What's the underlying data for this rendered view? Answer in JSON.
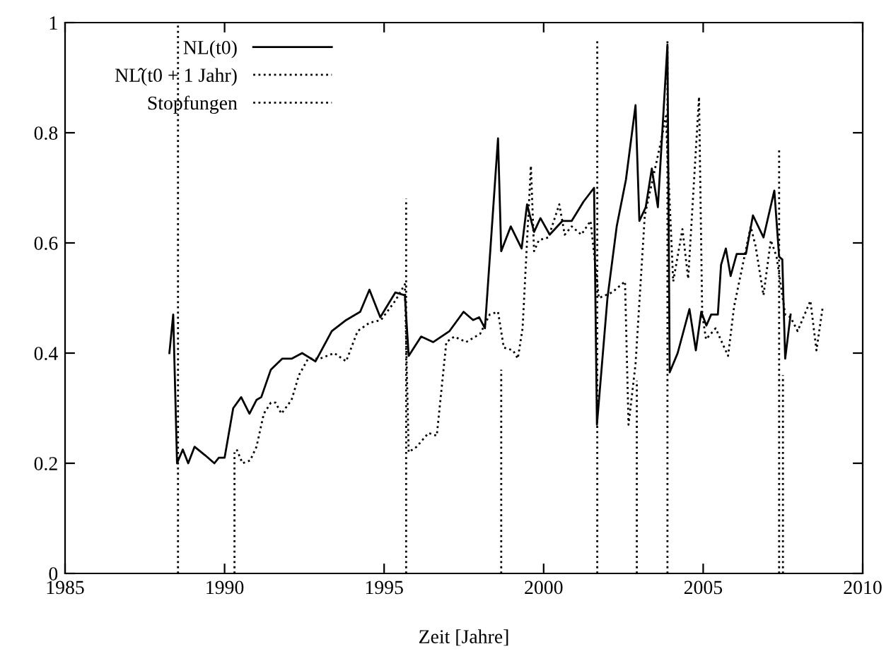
{
  "chart_data": {
    "type": "line",
    "xlabel": "Zeit [Jahre]",
    "xlim": [
      1985,
      2010
    ],
    "xticks": [
      1985,
      1990,
      1995,
      2000,
      2005,
      2010
    ],
    "ylim": [
      0,
      1
    ],
    "yticks": [
      0,
      {
        "value": 0.2,
        "label": "0.2"
      },
      {
        "value": 0.4,
        "label": "0.4"
      },
      {
        "value": 0.6,
        "label": "0.6"
      },
      {
        "value": 0.8,
        "label": "0.8"
      },
      1
    ],
    "grid": false,
    "legend": "top left",
    "marker": "none",
    "series": [
      {
        "name": "NL(t0)",
        "color": "#000000",
        "line_style": "solid",
        "x": [
          1988.27,
          1988.39,
          1988.51,
          1988.69,
          1988.86,
          1989.06,
          1989.38,
          1989.68,
          1989.82,
          1990.0,
          1990.27,
          1990.52,
          1990.78,
          1991.0,
          1991.15,
          1991.45,
          1991.81,
          1992.11,
          1992.43,
          1992.85,
          1993.36,
          1993.81,
          1994.25,
          1994.54,
          1994.88,
          1995.35,
          1995.65,
          1995.77,
          1996.16,
          1996.54,
          1997.05,
          1997.49,
          1997.79,
          1997.98,
          1998.16,
          1998.57,
          1998.67,
          1998.97,
          1999.31,
          1999.48,
          1999.7,
          1999.9,
          2000.19,
          2000.59,
          2000.88,
          2001.25,
          2001.58,
          2001.67,
          2002.0,
          2002.29,
          2002.58,
          2002.88,
          2003.0,
          2003.2,
          2003.39,
          2003.58,
          2003.88,
          2003.95,
          2004.2,
          2004.57,
          2004.77,
          2004.94,
          2005.1,
          2005.25,
          2005.46,
          2005.56,
          2005.71,
          2005.86,
          2006.05,
          2006.34,
          2006.56,
          2006.89,
          2007.23,
          2007.38,
          2007.48,
          2007.57,
          2007.74
        ],
        "values": [
          0.4,
          0.47,
          0.2,
          0.225,
          0.2,
          0.23,
          0.215,
          0.2,
          0.21,
          0.21,
          0.3,
          0.32,
          0.29,
          0.315,
          0.32,
          0.37,
          0.39,
          0.39,
          0.4,
          0.385,
          0.44,
          0.46,
          0.475,
          0.515,
          0.465,
          0.51,
          0.505,
          0.395,
          0.43,
          0.42,
          0.44,
          0.475,
          0.46,
          0.465,
          0.445,
          0.79,
          0.585,
          0.63,
          0.59,
          0.67,
          0.62,
          0.645,
          0.615,
          0.64,
          0.64,
          0.675,
          0.7,
          0.27,
          0.5,
          0.63,
          0.715,
          0.85,
          0.64,
          0.665,
          0.735,
          0.665,
          0.96,
          0.365,
          0.4,
          0.48,
          0.405,
          0.475,
          0.45,
          0.47,
          0.47,
          0.56,
          0.59,
          0.54,
          0.58,
          0.58,
          0.65,
          0.61,
          0.695,
          0.575,
          0.57,
          0.39,
          0.47
        ]
      },
      {
        "name": "NL̂(t0 + 1 Jahr)",
        "color": "#000000",
        "line_style": "dotted",
        "x": [
          1990.38,
          1990.56,
          1990.8,
          1991.0,
          1991.23,
          1991.45,
          1991.6,
          1991.78,
          1992.1,
          1992.33,
          1992.62,
          1992.99,
          1993.44,
          1993.81,
          1994.17,
          1994.54,
          1994.9,
          1995.35,
          1995.65,
          1995.77,
          1996.02,
          1996.39,
          1996.65,
          1996.95,
          1997.2,
          1997.57,
          1998.01,
          1998.31,
          1998.57,
          1998.75,
          1999.04,
          1999.19,
          1999.34,
          1999.6,
          1999.7,
          1999.85,
          2000.15,
          2000.49,
          2000.66,
          2000.88,
          2001.18,
          2001.47,
          2001.73,
          2002.14,
          2002.55,
          2002.66,
          2002.88,
          2003.17,
          2003.68,
          2003.83,
          2004.06,
          2004.35,
          2004.53,
          2004.87,
          2004.97,
          2005.09,
          2005.39,
          2005.78,
          2005.97,
          2006.49,
          2006.64,
          2006.89,
          2007.12,
          2007.3,
          2007.57,
          2007.74,
          2007.96,
          2008.36,
          2008.55,
          2008.75
        ],
        "values": [
          0.225,
          0.2,
          0.205,
          0.23,
          0.29,
          0.31,
          0.31,
          0.29,
          0.315,
          0.36,
          0.39,
          0.39,
          0.4,
          0.385,
          0.44,
          0.455,
          0.46,
          0.495,
          0.525,
          0.22,
          0.23,
          0.255,
          0.25,
          0.42,
          0.43,
          0.42,
          0.435,
          0.47,
          0.475,
          0.41,
          0.405,
          0.39,
          0.445,
          0.74,
          0.585,
          0.605,
          0.61,
          0.67,
          0.615,
          0.63,
          0.615,
          0.64,
          0.5,
          0.51,
          0.53,
          0.27,
          0.38,
          0.65,
          0.785,
          0.83,
          0.53,
          0.625,
          0.535,
          0.865,
          0.47,
          0.425,
          0.445,
          0.395,
          0.485,
          0.63,
          0.595,
          0.505,
          0.605,
          0.575,
          0.47,
          0.465,
          0.44,
          0.495,
          0.405,
          0.485
        ]
      },
      {
        "name": "Stopfungen",
        "color": "#000000",
        "line_style": "dotted",
        "x": [
          1988.54,
          1988.54,
          null,
          1990.31,
          1990.31,
          null,
          1995.69,
          1995.69,
          null,
          1998.67,
          1998.67,
          null,
          2001.68,
          2001.68,
          null,
          2002.92,
          2002.92,
          null,
          2003.88,
          2003.88,
          null,
          2007.38,
          2007.38,
          null,
          2007.5,
          2007.5
        ],
        "values": [
          0,
          1,
          null,
          0,
          0.22,
          null,
          0,
          0.68,
          null,
          0,
          0.37,
          null,
          0,
          0.97,
          null,
          0,
          0.35,
          null,
          0,
          0.97,
          null,
          0,
          0.77,
          null,
          0,
          0.36
        ]
      }
    ]
  }
}
